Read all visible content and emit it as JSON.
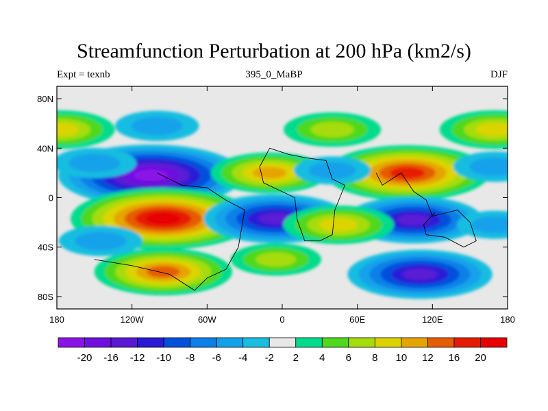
{
  "chart_data": {
    "type": "heatmap",
    "title": "Streamfunction Perturbation at 200 hPa (km2/s)",
    "left_label": "Expt = texnb",
    "center_label": "395_0_MaBP",
    "right_label": "DJF",
    "x_ticks": [
      {
        "value": -180,
        "label": "180"
      },
      {
        "value": -120,
        "label": "120W"
      },
      {
        "value": -60,
        "label": "60W"
      },
      {
        "value": 0,
        "label": "0"
      },
      {
        "value": 60,
        "label": "60E"
      },
      {
        "value": 120,
        "label": "120E"
      },
      {
        "value": 180,
        "label": "180"
      }
    ],
    "y_ticks": [
      {
        "value": 80,
        "label": "80N"
      },
      {
        "value": 40,
        "label": "40N"
      },
      {
        "value": 0,
        "label": "0"
      },
      {
        "value": -40,
        "label": "40S"
      },
      {
        "value": -80,
        "label": "80S"
      }
    ],
    "xlim": [
      -180,
      180
    ],
    "ylim": [
      -90,
      90
    ],
    "colorbar": {
      "labels": [
        "-20",
        "-16",
        "-12",
        "-10",
        "-8",
        "-6",
        "-4",
        "-2",
        "2",
        "4",
        "6",
        "8",
        "10",
        "12",
        "16",
        "20"
      ],
      "colors": [
        "#8a14e6",
        "#7010e0",
        "#5a1ad4",
        "#2a1ad6",
        "#0050dc",
        "#0a80e8",
        "#12a2ea",
        "#18bde0",
        "#e8e8e8",
        "#00dc8c",
        "#50d81c",
        "#a6dc0c",
        "#dcd400",
        "#e6a400",
        "#e65c00",
        "#e61a00",
        "#e60000"
      ]
    },
    "field_centers": [
      {
        "lon": -105,
        "lat": 18,
        "value": -20
      },
      {
        "lon": -95,
        "lat": -17,
        "value": 20
      },
      {
        "lon": -95,
        "lat": -60,
        "value": 13
      },
      {
        "lon": -5,
        "lat": -17,
        "value": -14
      },
      {
        "lon": 100,
        "lat": 20,
        "value": 17
      },
      {
        "lon": 105,
        "lat": -18,
        "value": -13
      },
      {
        "lon": 110,
        "lat": -62,
        "value": -14
      },
      {
        "lon": -10,
        "lat": 20,
        "value": 10
      },
      {
        "lon": -100,
        "lat": 58,
        "value": -5
      },
      {
        "lon": 40,
        "lat": 55,
        "value": 7
      },
      {
        "lon": -178,
        "lat": 55,
        "value": 9
      },
      {
        "lon": 170,
        "lat": 55,
        "value": 9
      },
      {
        "lon": 45,
        "lat": -22,
        "value": 9
      },
      {
        "lon": -5,
        "lat": -50,
        "value": 6
      },
      {
        "lon": -145,
        "lat": -35,
        "value": -5
      },
      {
        "lon": 40,
        "lat": 22,
        "value": -4
      },
      {
        "lon": -150,
        "lat": 28,
        "value": -5
      },
      {
        "lon": 170,
        "lat": 25,
        "value": -5
      },
      {
        "lon": 170,
        "lat": -22,
        "value": -4
      }
    ]
  }
}
